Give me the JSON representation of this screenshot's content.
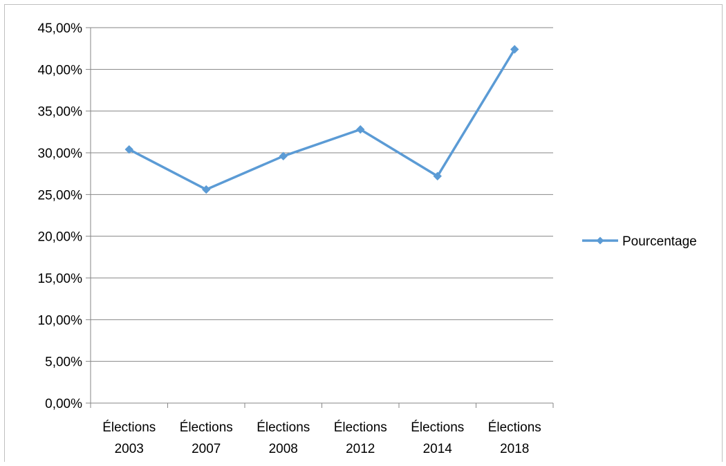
{
  "chart_data": {
    "type": "line",
    "title": "",
    "xlabel": "",
    "ylabel": "",
    "categories": [
      [
        "Élections",
        "2003"
      ],
      [
        "Élections",
        "2007"
      ],
      [
        "Élections",
        "2008"
      ],
      [
        "Élections",
        "2012"
      ],
      [
        "Élections",
        "2014"
      ],
      [
        "Élections",
        "2018"
      ]
    ],
    "series": [
      {
        "name": "Pourcentage",
        "values": [
          30.4,
          25.6,
          29.6,
          32.8,
          27.2,
          42.4
        ],
        "color": "#5b9bd5",
        "marker": "diamond"
      }
    ],
    "ylim": [
      0,
      45
    ],
    "yticks": [
      "0,00%",
      "5,00%",
      "10,00%",
      "15,00%",
      "20,00%",
      "25,00%",
      "30,00%",
      "35,00%",
      "40,00%",
      "45,00%"
    ],
    "grid": true,
    "legend": "right",
    "gridline_color": "#868686"
  }
}
